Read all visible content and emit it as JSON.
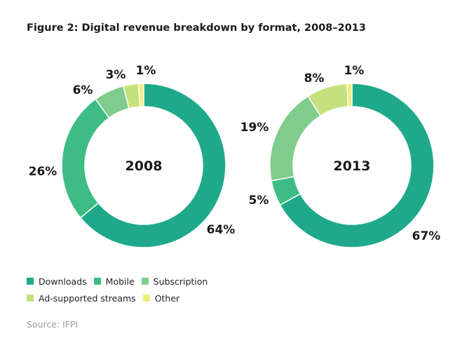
{
  "figure_title": "Figure 2: Digital revenue breakdown by format, 2008–2013",
  "source": "Source: IFPI",
  "colors": {
    "Downloads": "#1fa98a",
    "Mobile": "#3dbd84",
    "Subscription": "#7fcc8c",
    "Ad-supported streams": "#c5e17f",
    "Other": "#eef07c"
  },
  "legend": {
    "row1": [
      "Downloads",
      "Mobile",
      "Subscription"
    ],
    "row2": [
      "Ad-supported streams",
      "Other"
    ]
  },
  "chart_data": [
    {
      "type": "pie",
      "variant": "donut",
      "center_label": "2008",
      "categories": [
        "Downloads",
        "Mobile",
        "Subscription",
        "Ad-supported streams",
        "Other"
      ],
      "values": [
        64,
        26,
        6,
        3,
        1
      ],
      "labels": [
        "64%",
        "26%",
        "6%",
        "3%",
        "1%"
      ]
    },
    {
      "type": "pie",
      "variant": "donut",
      "center_label": "2013",
      "categories": [
        "Downloads",
        "Mobile",
        "Subscription",
        "Ad-supported streams",
        "Other"
      ],
      "values": [
        67,
        5,
        19,
        8,
        1
      ],
      "labels": [
        "67%",
        "5%",
        "19%",
        "8%",
        "1%"
      ]
    }
  ]
}
